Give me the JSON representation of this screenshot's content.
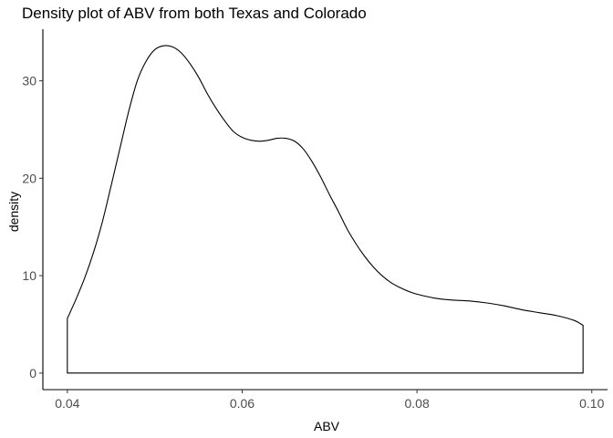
{
  "chart_data": {
    "type": "area",
    "title": "Density plot of ABV from both Texas and Colorado",
    "xlabel": "ABV",
    "ylabel": "density",
    "xlim": [
      0.0372,
      0.1018
    ],
    "ylim": [
      -1.7,
      35.3
    ],
    "x_ticks": [
      0.04,
      0.06,
      0.08,
      0.1
    ],
    "x_tick_labels": [
      "0.04",
      "0.06",
      "0.08",
      "0.10"
    ],
    "y_ticks": [
      0,
      10,
      20,
      30
    ],
    "y_tick_labels": [
      "0",
      "10",
      "20",
      "30"
    ],
    "grid": false,
    "legend": "none",
    "fill": "none",
    "line_color": "#000000",
    "series": [
      {
        "x": [
          0.04,
          0.041,
          0.042,
          0.043,
          0.044,
          0.045,
          0.046,
          0.047,
          0.048,
          0.049,
          0.05,
          0.051,
          0.052,
          0.053,
          0.054,
          0.055,
          0.056,
          0.057,
          0.058,
          0.059,
          0.06,
          0.061,
          0.062,
          0.063,
          0.064,
          0.065,
          0.066,
          0.067,
          0.068,
          0.069,
          0.07,
          0.071,
          0.072,
          0.073,
          0.074,
          0.075,
          0.076,
          0.077,
          0.078,
          0.079,
          0.08,
          0.082,
          0.084,
          0.086,
          0.088,
          0.09,
          0.092,
          0.094,
          0.096,
          0.098,
          0.099
        ],
        "y": [
          5.6,
          7.6,
          9.8,
          12.4,
          15.5,
          19.2,
          23.0,
          26.8,
          30.0,
          32.0,
          33.2,
          33.6,
          33.5,
          32.9,
          31.8,
          30.4,
          28.7,
          27.2,
          25.9,
          24.8,
          24.2,
          23.9,
          23.8,
          23.9,
          24.1,
          24.1,
          23.8,
          23.0,
          21.7,
          20.1,
          18.3,
          16.6,
          14.8,
          13.3,
          12.0,
          10.9,
          10.0,
          9.3,
          8.8,
          8.4,
          8.1,
          7.7,
          7.5,
          7.4,
          7.2,
          6.9,
          6.5,
          6.2,
          5.9,
          5.4,
          4.9
        ]
      }
    ]
  }
}
